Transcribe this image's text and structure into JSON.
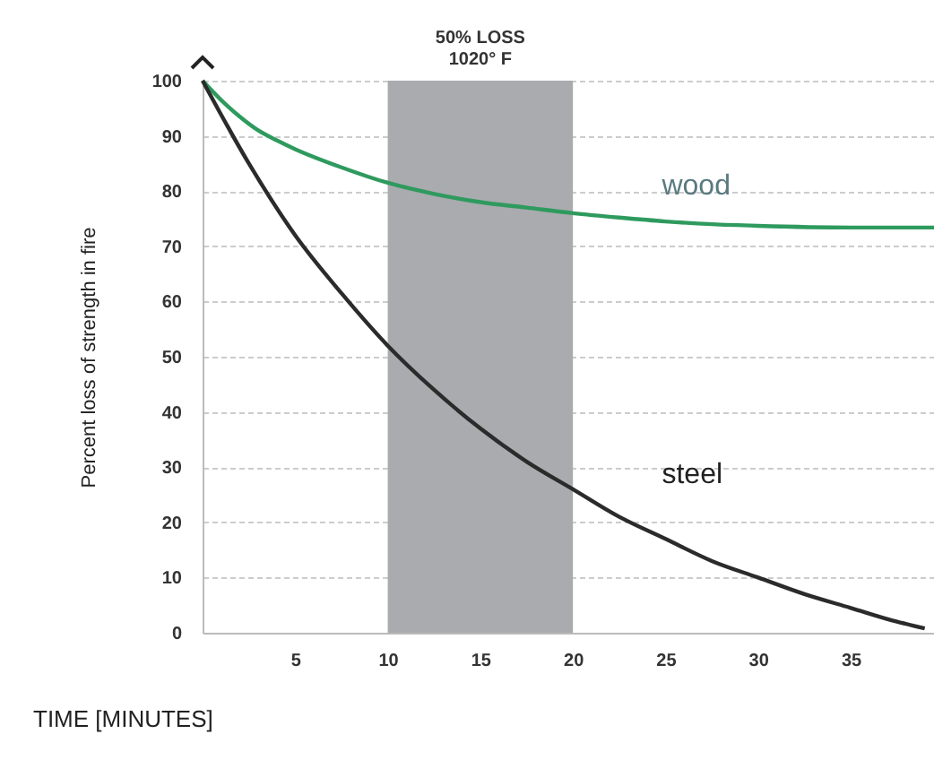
{
  "chart_data": {
    "type": "line",
    "xlabel": "TIME  [MINUTES]",
    "ylabel": "Percent loss of strength in fire",
    "series": [
      {
        "name": "wood",
        "color": "#2e9a5e",
        "x": [
          0,
          1,
          2,
          3,
          4,
          5,
          7.5,
          10,
          12.5,
          15,
          17.5,
          20,
          22.5,
          25,
          27.5,
          30,
          35,
          39.5
        ],
        "values": [
          100,
          96.5,
          93.5,
          91,
          89.2,
          87.6,
          84.3,
          81.5,
          79.5,
          78,
          77,
          76,
          75.2,
          74.5,
          74,
          73.7,
          73.4,
          73.4
        ]
      },
      {
        "name": "steel",
        "color": "#2b2b2b",
        "x": [
          0,
          2.5,
          5,
          7.5,
          10,
          12.5,
          15,
          17.5,
          20,
          22.5,
          25,
          27.5,
          30,
          32.5,
          35,
          37.5,
          39
        ],
        "values": [
          100,
          85,
          72,
          61.5,
          52,
          44,
          37,
          31,
          26,
          21,
          17,
          13,
          10,
          7,
          4.5,
          2,
          0.8
        ]
      }
    ],
    "xlim": [
      0,
      39.5
    ],
    "xticks": [
      5,
      10,
      15,
      20,
      25,
      30,
      35
    ],
    "ylim": [
      0,
      100
    ],
    "yticks": [
      0,
      10,
      20,
      30,
      40,
      50,
      60,
      70,
      80,
      90,
      100
    ],
    "bands": [
      {
        "axis": "x",
        "from": 10,
        "to": 20,
        "label": "50% LOSS\n1020° F",
        "color": "#a9abae"
      }
    ],
    "grid": "y",
    "marker": "none",
    "line_style": "solid"
  }
}
